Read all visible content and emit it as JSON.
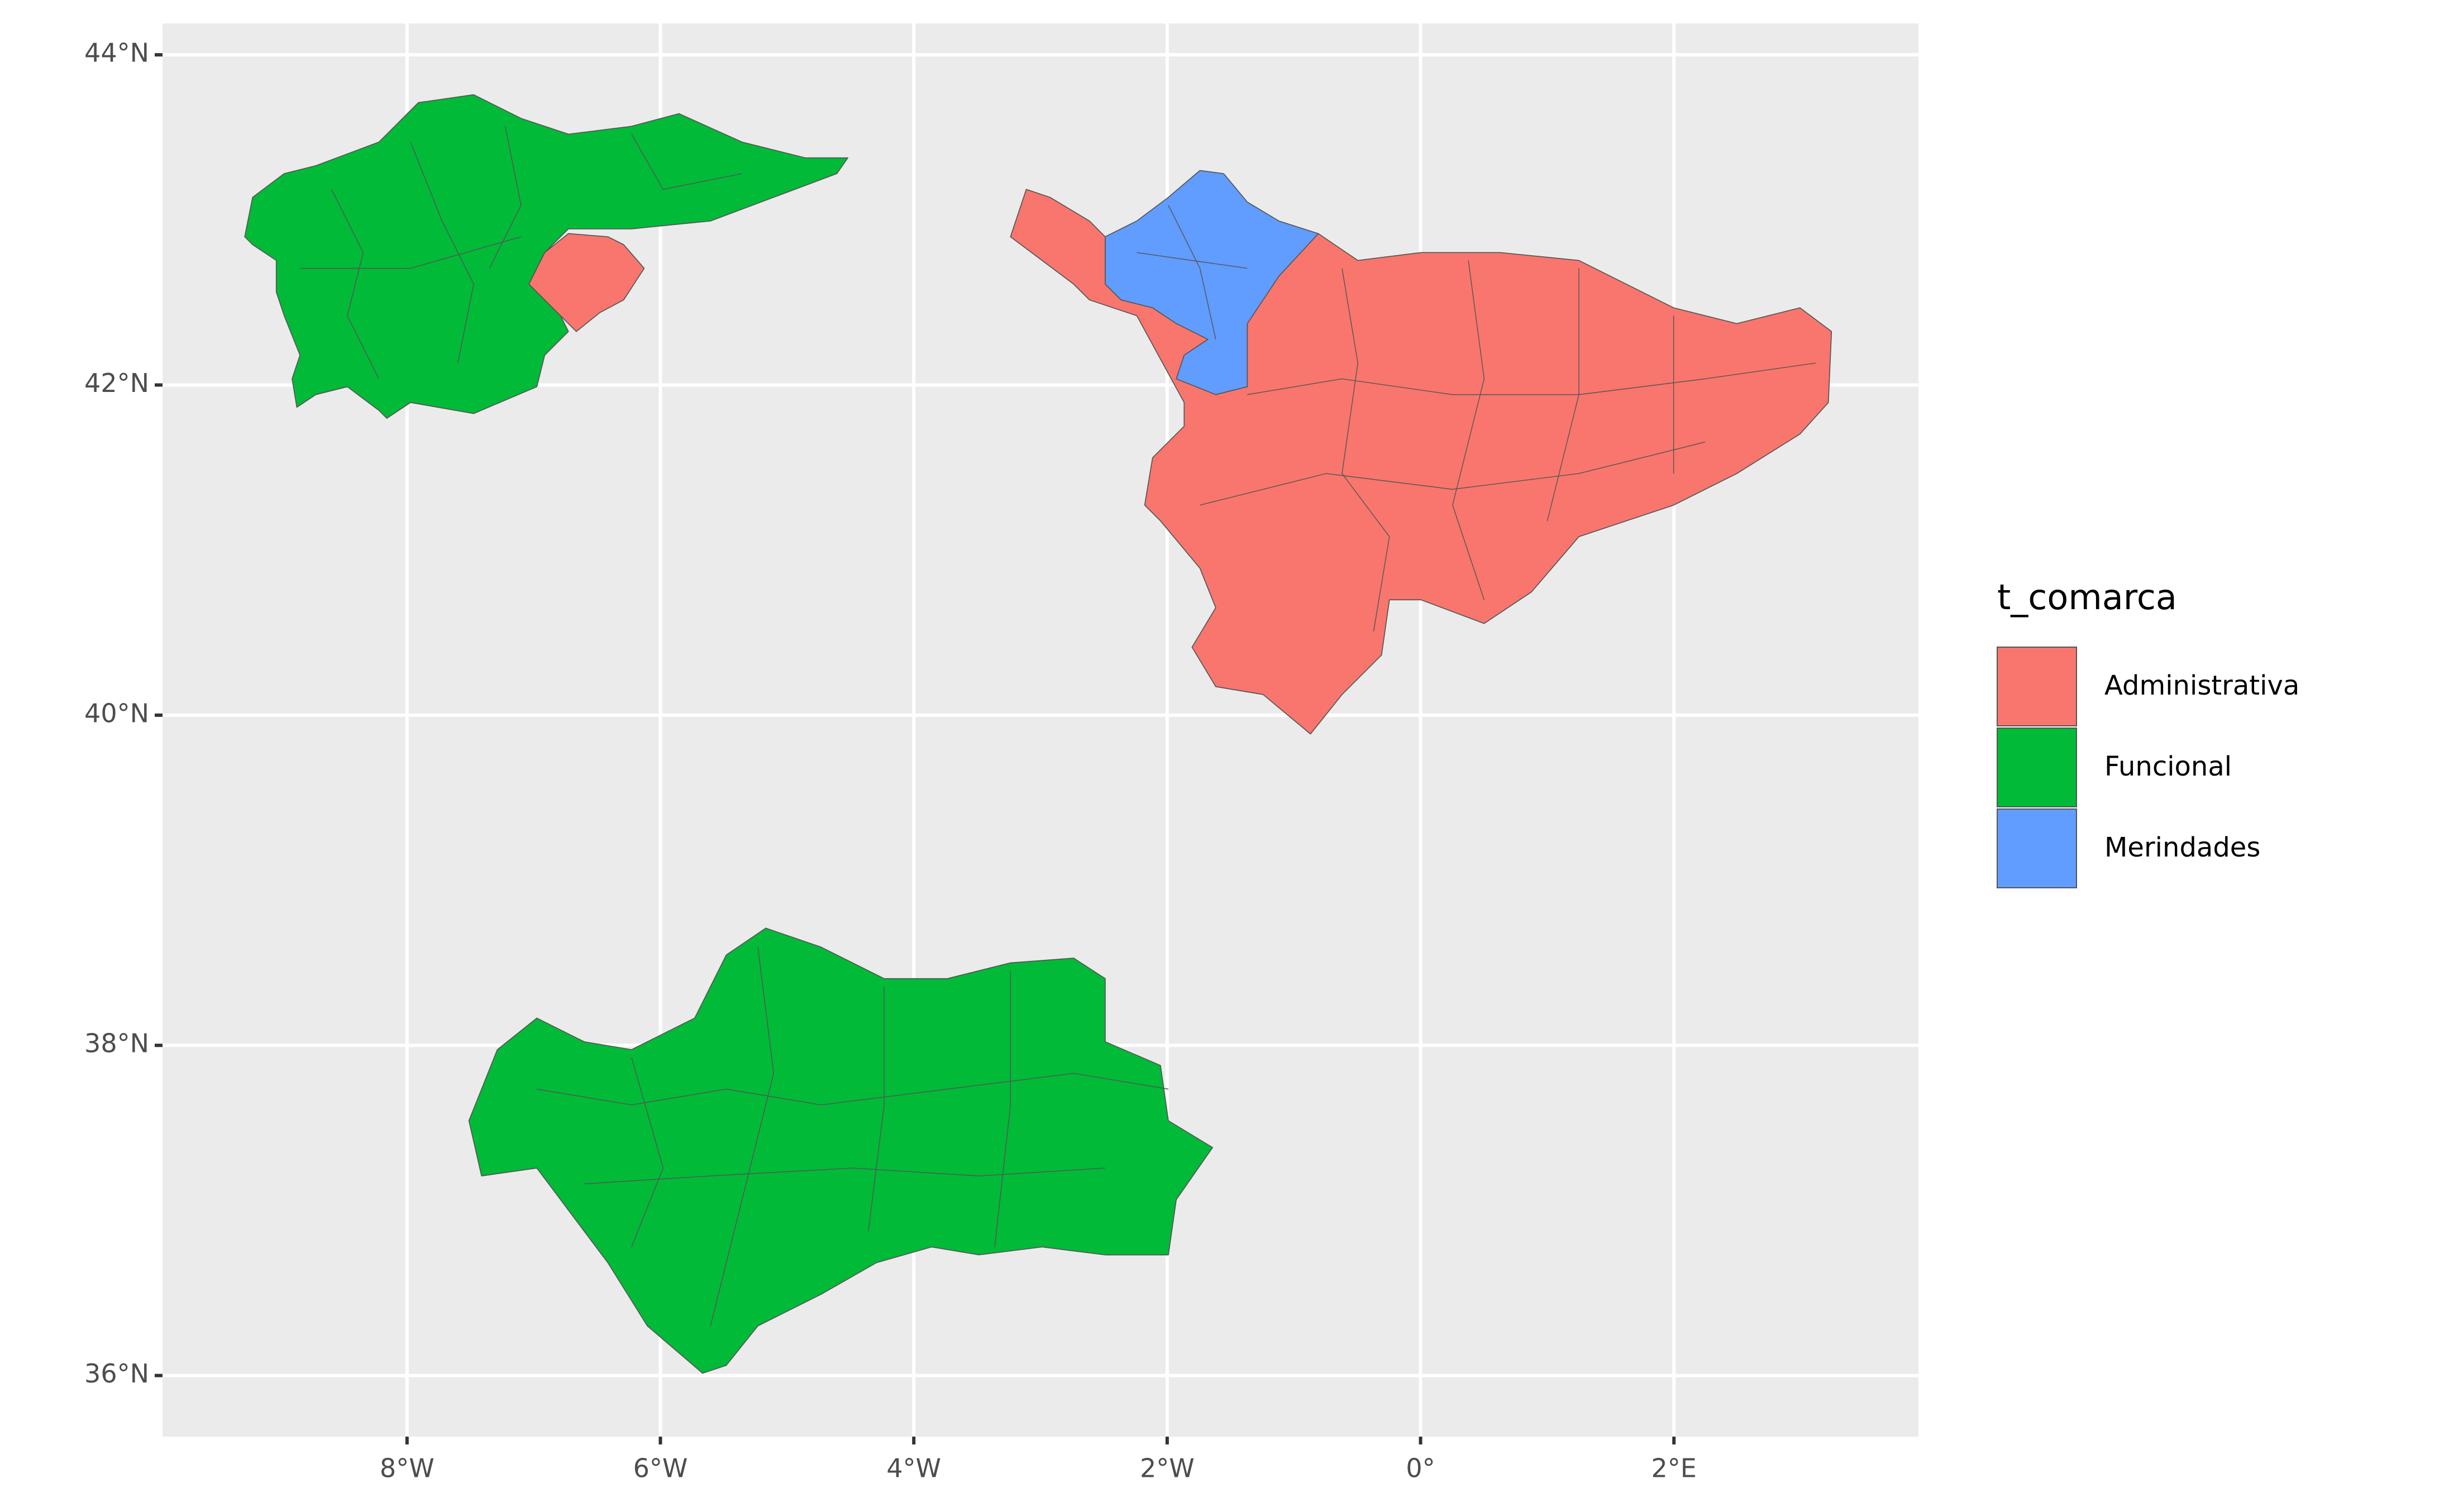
{
  "chart_data": {
    "type": "map",
    "xlim": [
      -9.93,
      3.93
    ],
    "ylim": [
      35.63,
      44.19
    ],
    "xticks": [
      {
        "value": -8,
        "label": "8°W"
      },
      {
        "value": -6,
        "label": "6°W"
      },
      {
        "value": -4,
        "label": "4°W"
      },
      {
        "value": -2,
        "label": "2°W"
      },
      {
        "value": 0,
        "label": "0°"
      },
      {
        "value": 2,
        "label": "2°E"
      }
    ],
    "yticks": [
      {
        "value": 36,
        "label": "36°N"
      },
      {
        "value": 38,
        "label": "38°N"
      },
      {
        "value": 40,
        "label": "40°N"
      },
      {
        "value": 42,
        "label": "42°N"
      },
      {
        "value": 44,
        "label": "44°N"
      }
    ],
    "grid": true,
    "legend": {
      "title": "t_comarca",
      "position": "right",
      "entries": [
        {
          "name": "Administrativa",
          "color": "#F8766D"
        },
        {
          "name": "Funcional",
          "color": "#00BA38"
        },
        {
          "name": "Merindades",
          "color": "#619CFF"
        }
      ]
    }
  }
}
